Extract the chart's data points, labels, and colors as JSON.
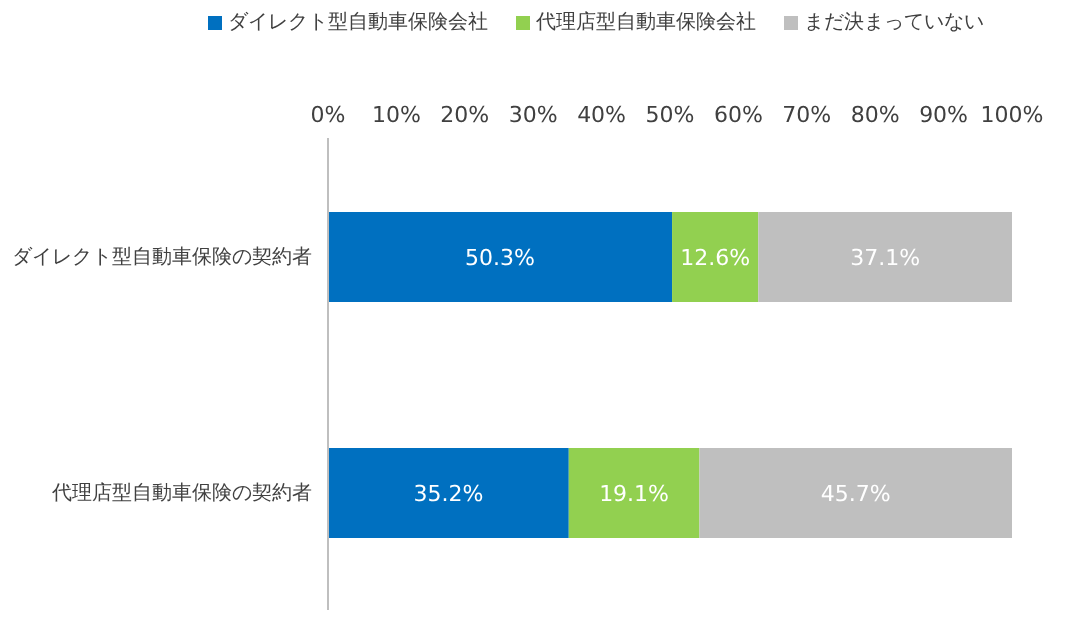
{
  "chart_data": {
    "type": "bar",
    "orientation": "horizontal",
    "stacked": true,
    "categories": [
      "ダイレクト型自動車保険の契約者",
      "代理店型自動車保険の契約者"
    ],
    "series": [
      {
        "name": "ダイレクト型自動車保険会社",
        "color": "#0070c0",
        "values": [
          50.3,
          35.2
        ],
        "value_labels": [
          "50.3%",
          "35.2%"
        ]
      },
      {
        "name": "代理店型自動車保険会社",
        "color": "#92d050",
        "values": [
          12.6,
          19.1
        ],
        "value_labels": [
          "12.6%",
          "19.1%"
        ]
      },
      {
        "name": "まだ決まっていない",
        "color": "#bfbfbf",
        "values": [
          37.1,
          45.7
        ],
        "value_labels": [
          "37.1%",
          "45.7%"
        ]
      }
    ],
    "xlim": [
      0,
      100
    ],
    "xticks": [
      {
        "value": 0,
        "label": "0%"
      },
      {
        "value": 10,
        "label": "10%"
      },
      {
        "value": 20,
        "label": "20%"
      },
      {
        "value": 30,
        "label": "30%"
      },
      {
        "value": 40,
        "label": "40%"
      },
      {
        "value": 50,
        "label": "50%"
      },
      {
        "value": 60,
        "label": "60%"
      },
      {
        "value": 70,
        "label": "70%"
      },
      {
        "value": 80,
        "label": "80%"
      },
      {
        "value": 90,
        "label": "90%"
      },
      {
        "value": 100,
        "label": "100%"
      }
    ],
    "grid": false,
    "legend": "top"
  }
}
